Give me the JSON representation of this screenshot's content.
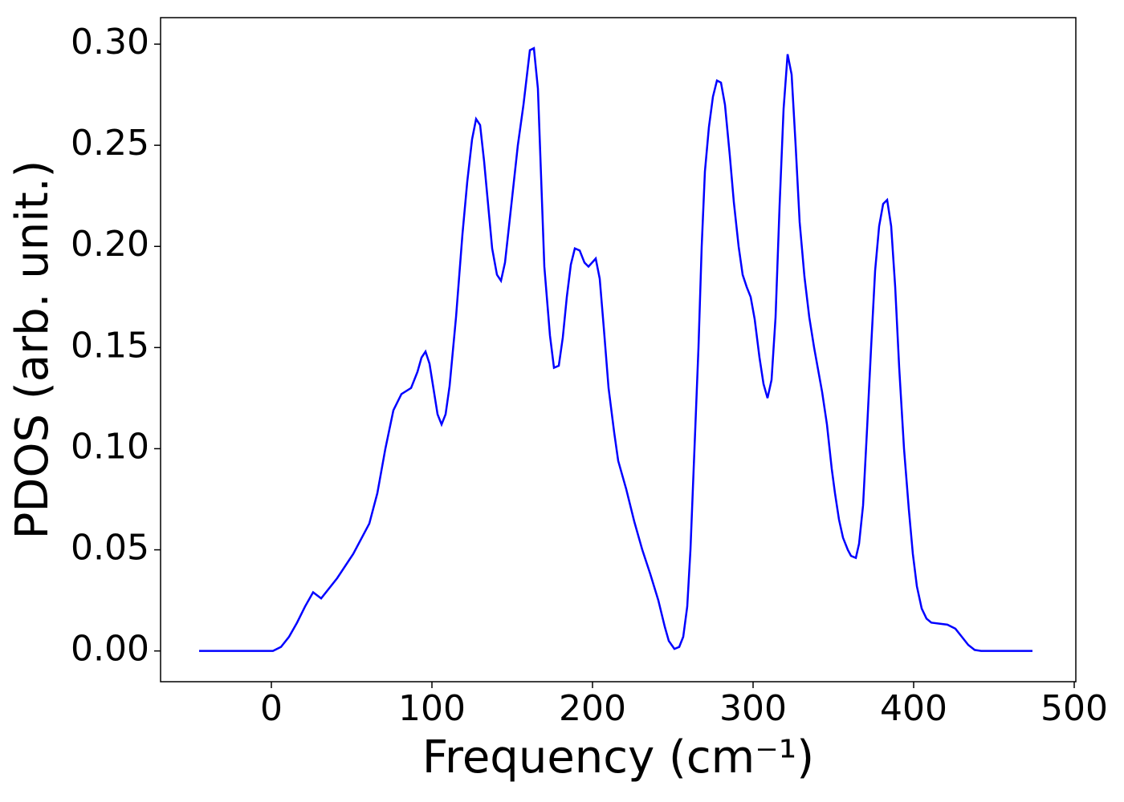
{
  "chart_data": {
    "type": "line",
    "xlabel": "Frequency (cm⁻¹)",
    "ylabel": "PDOS (arb. unit.)",
    "xlim": [
      -69,
      501
    ],
    "ylim": [
      -0.0152,
      0.3131
    ],
    "xticks": [
      0,
      100,
      200,
      300,
      400,
      500
    ],
    "yticks": [
      {
        "value": 0,
        "label": "0.00"
      },
      0.05,
      {
        "value": 0.1,
        "label": "0.10"
      },
      0.15,
      {
        "value": 0.2,
        "label": "0.20"
      },
      0.25,
      {
        "value": 0.3,
        "label": "0.30"
      }
    ],
    "series": [
      {
        "color": "#0000ff",
        "x": [
          -45,
          -20,
          1,
          6,
          11,
          16,
          21,
          26,
          31,
          41,
          51,
          61,
          66,
          71,
          76,
          81,
          87,
          91,
          93.5,
          96,
          98.5,
          103.5,
          106,
          108.5,
          111,
          115,
          119,
          122,
          125,
          127.5,
          130,
          132.5,
          137.5,
          140.5,
          143,
          145.5,
          148,
          153.5,
          157,
          161,
          163.5,
          166,
          170,
          173.5,
          176,
          179,
          181.5,
          184,
          186.5,
          189,
          192,
          195,
          197.5,
          202,
          204.5,
          207,
          210,
          213.5,
          216,
          221,
          226,
          231,
          236,
          241,
          245,
          247.5,
          251,
          254,
          256.5,
          259,
          261,
          263.5,
          266,
          268,
          270,
          272.5,
          275,
          277.5,
          280,
          282.5,
          285.5,
          288,
          291,
          293.5,
          296,
          298.5,
          301,
          304,
          306.5,
          309,
          311.5,
          314,
          316.5,
          319,
          321.5,
          324,
          326.5,
          329,
          332,
          335,
          338,
          343,
          346,
          349,
          351,
          353.5,
          356,
          359,
          361,
          364,
          366,
          368.5,
          371,
          373.5,
          376,
          378.5,
          381,
          383.5,
          386,
          388.5,
          391,
          394,
          397,
          399.5,
          402,
          405,
          408,
          411,
          416,
          421,
          426,
          430,
          434,
          438,
          442,
          474
        ],
        "values": [
          0,
          0,
          0,
          0.002,
          0.007,
          0.014,
          0.022,
          0.029,
          0.026,
          0.036,
          0.048,
          0.063,
          0.078,
          0.1,
          0.119,
          0.127,
          0.13,
          0.138,
          0.145,
          0.148,
          0.142,
          0.117,
          0.112,
          0.117,
          0.131,
          0.165,
          0.206,
          0.232,
          0.253,
          0.263,
          0.26,
          0.242,
          0.199,
          0.186,
          0.183,
          0.192,
          0.21,
          0.25,
          0.27,
          0.297,
          0.298,
          0.278,
          0.19,
          0.156,
          0.14,
          0.141,
          0.155,
          0.175,
          0.191,
          0.199,
          0.198,
          0.192,
          0.19,
          0.194,
          0.184,
          0.16,
          0.13,
          0.108,
          0.094,
          0.08,
          0.064,
          0.05,
          0.038,
          0.025,
          0.012,
          0.005,
          0.001,
          0.002,
          0.007,
          0.022,
          0.05,
          0.1,
          0.15,
          0.2,
          0.237,
          0.259,
          0.274,
          0.282,
          0.281,
          0.27,
          0.245,
          0.222,
          0.2,
          0.186,
          0.18,
          0.175,
          0.164,
          0.145,
          0.132,
          0.125,
          0.134,
          0.165,
          0.22,
          0.268,
          0.295,
          0.285,
          0.25,
          0.212,
          0.185,
          0.165,
          0.15,
          0.128,
          0.112,
          0.09,
          0.078,
          0.065,
          0.056,
          0.05,
          0.047,
          0.046,
          0.053,
          0.072,
          0.11,
          0.15,
          0.188,
          0.21,
          0.221,
          0.223,
          0.21,
          0.18,
          0.14,
          0.1,
          0.07,
          0.048,
          0.032,
          0.021,
          0.016,
          0.014,
          0.0135,
          0.013,
          0.011,
          0.007,
          0.003,
          0.0005,
          0,
          0
        ]
      }
    ]
  }
}
